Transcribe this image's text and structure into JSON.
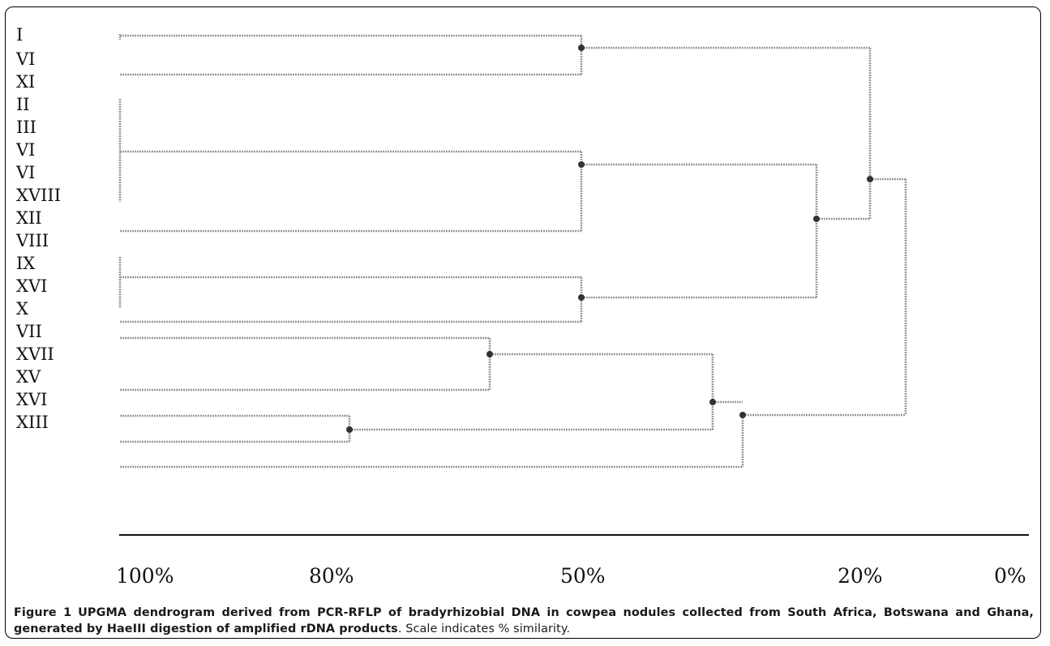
{
  "figure": {
    "caption_label": "Figure 1",
    "caption_title": "UPGMA dendrogram derived from PCR-RFLP of bradyrhizobial DNA in cowpea nodules collected from South Africa, Botswana and Ghana, generated by HaeIII digestion of amplified rDNA products",
    "caption_rest": ". Scale indicates % similarity."
  },
  "dendrogram": {
    "leaves": [
      "I",
      "VI",
      "XI",
      "II",
      "III",
      "VI",
      "VI",
      "XVIII",
      "XII",
      "VIII",
      "IX",
      "XVI",
      "X",
      "VII",
      "XVII",
      "XV",
      "XVI",
      "XIII"
    ],
    "scale_labels": [
      "100%",
      "80%",
      "50%",
      "20%",
      "0%"
    ],
    "line_color": "#9a9a9a",
    "node_color": "#333333"
  }
}
